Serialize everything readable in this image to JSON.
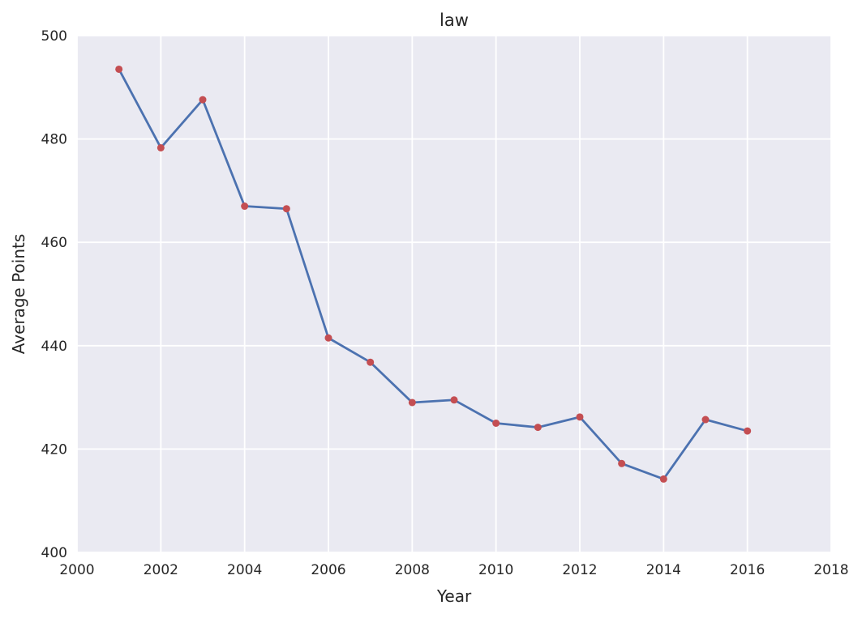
{
  "chart_data": {
    "type": "line",
    "title": "law",
    "xlabel": "Year",
    "ylabel": "Average Points",
    "xlim": [
      2000,
      2018
    ],
    "ylim": [
      400,
      500
    ],
    "xticks": [
      "2000",
      "2002",
      "2004",
      "2006",
      "2008",
      "2010",
      "2012",
      "2014",
      "2016",
      "2018"
    ],
    "yticks": [
      "400",
      "420",
      "440",
      "460",
      "480",
      "500"
    ],
    "grid": true,
    "series": [
      {
        "name": "law",
        "x": [
          2001,
          2002,
          2003,
          2004,
          2005,
          2006,
          2007,
          2008,
          2009,
          2010,
          2011,
          2012,
          2013,
          2014,
          2015,
          2016
        ],
        "values": [
          493.5,
          478.3,
          487.6,
          467.0,
          466.5,
          441.5,
          436.8,
          429.0,
          429.5,
          425.0,
          424.2,
          426.2,
          417.2,
          414.2,
          425.7,
          423.5
        ],
        "line_color": "#4c72b0",
        "marker_color": "#c44e52"
      }
    ],
    "colors": {
      "plot_background": "#eaeaf2",
      "grid": "#ffffff",
      "text": "#262626"
    }
  }
}
